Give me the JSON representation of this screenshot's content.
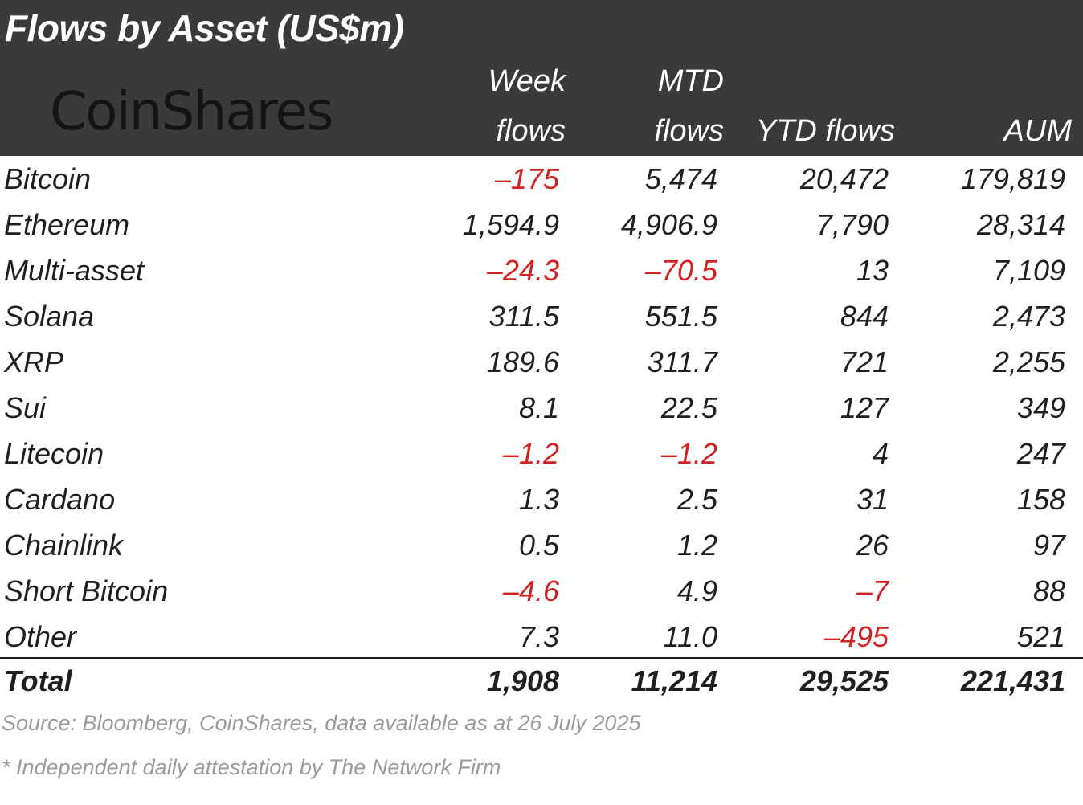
{
  "title": "Flows by Asset (US$m)",
  "logo_text": "CoinShares",
  "columns": {
    "week": [
      "Week",
      "flows"
    ],
    "mtd": [
      "MTD",
      "flows"
    ],
    "ytd": "YTD flows",
    "aum": "AUM"
  },
  "rows": [
    {
      "asset": "Bitcoin",
      "week": "-175",
      "mtd": "5,474",
      "ytd": "20,472",
      "aum": "179,819"
    },
    {
      "asset": "Ethereum",
      "week": "1,594.9",
      "mtd": "4,906.9",
      "ytd": "7,790",
      "aum": "28,314"
    },
    {
      "asset": "Multi-asset",
      "week": "-24.3",
      "mtd": "-70.5",
      "ytd": "13",
      "aum": "7,109"
    },
    {
      "asset": "Solana",
      "week": "311.5",
      "mtd": "551.5",
      "ytd": "844",
      "aum": "2,473"
    },
    {
      "asset": "XRP",
      "week": "189.6",
      "mtd": "311.7",
      "ytd": "721",
      "aum": "2,255"
    },
    {
      "asset": "Sui",
      "week": "8.1",
      "mtd": "22.5",
      "ytd": "127",
      "aum": "349"
    },
    {
      "asset": "Litecoin",
      "week": "-1.2",
      "mtd": "-1.2",
      "ytd": "4",
      "aum": "247"
    },
    {
      "asset": "Cardano",
      "week": "1.3",
      "mtd": "2.5",
      "ytd": "31",
      "aum": "158"
    },
    {
      "asset": "Chainlink",
      "week": "0.5",
      "mtd": "1.2",
      "ytd": "26",
      "aum": "97"
    },
    {
      "asset": "Short Bitcoin",
      "week": "-4.6",
      "mtd": "4.9",
      "ytd": "-7",
      "aum": "88"
    },
    {
      "asset": "Other",
      "week": "7.3",
      "mtd": "11.0",
      "ytd": "-495",
      "aum": "521"
    }
  ],
  "total": {
    "asset": "Total",
    "week": "1,908",
    "mtd": "11,214",
    "ytd": "29,525",
    "aum": "221,431"
  },
  "source": "Source: Bloomberg, CoinShares, data available as at 26 July 2025",
  "footnote": "* Independent daily attestation by The Network Firm",
  "colors": {
    "header_bg": "#3b3a38",
    "negative": "#d32020",
    "text": "#1f1f1f",
    "muted": "#9a9a9a"
  }
}
